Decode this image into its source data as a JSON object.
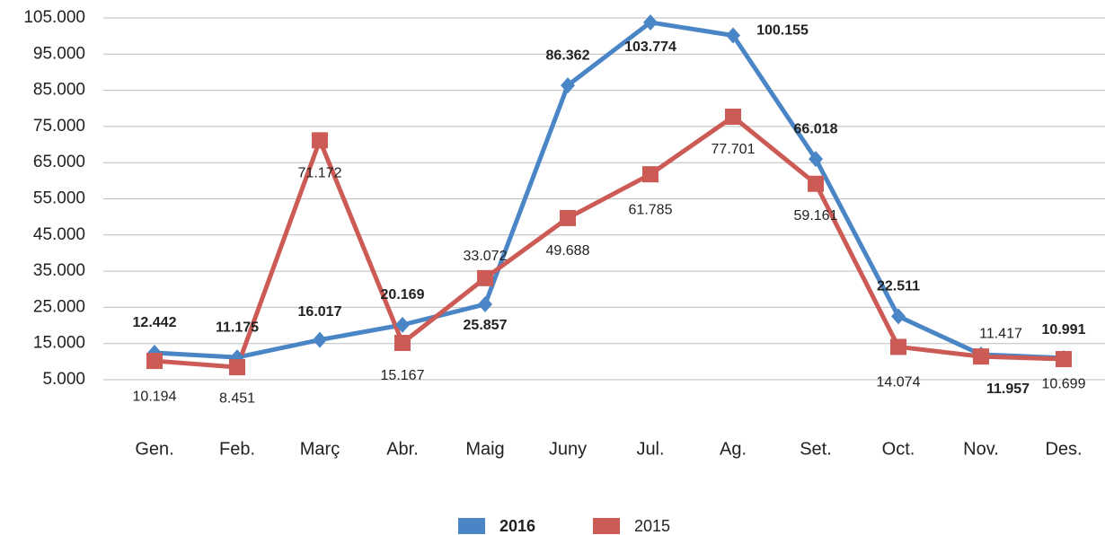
{
  "chart_data": {
    "type": "line",
    "categories": [
      "Gen.",
      "Feb.",
      "Març",
      "Abr.",
      "Maig",
      "Juny",
      "Jul.",
      "Ag.",
      "Set.",
      "Oct.",
      "Nov.",
      "Des."
    ],
    "series": [
      {
        "name": "2016",
        "color": "#4a86c5",
        "marker": "diamond",
        "values": [
          12442,
          11175,
          16017,
          20169,
          25857,
          86362,
          103774,
          100155,
          66018,
          22511,
          11957,
          10991
        ],
        "value_labels": [
          "12.442",
          "11.175",
          "16.017",
          "20.169",
          "25.857",
          "86.362",
          "103.774",
          "100.155",
          "66.018",
          "22.511",
          "11.957",
          "10.991"
        ]
      },
      {
        "name": "2015",
        "color": "#cc5a55",
        "marker": "square",
        "values": [
          10194,
          8451,
          71172,
          15167,
          33072,
          49688,
          61785,
          77701,
          59161,
          14074,
          11417,
          10699
        ],
        "value_labels": [
          "10.194",
          "8.451",
          "71.172",
          "15.167",
          "33.072",
          "49.688",
          "61.785",
          "77.701",
          "59.161",
          "14.074",
          "11.417",
          "10.699"
        ]
      }
    ],
    "ylim": [
      5000,
      105000
    ],
    "yticks": [
      {
        "value": 5000,
        "label": "5.000"
      },
      {
        "value": 15000,
        "label": "15.000"
      },
      {
        "value": 25000,
        "label": "25.000"
      },
      {
        "value": 35000,
        "label": "35.000"
      },
      {
        "value": 45000,
        "label": "45.000"
      },
      {
        "value": 55000,
        "label": "55.000"
      },
      {
        "value": 65000,
        "label": "65.000"
      },
      {
        "value": 75000,
        "label": "75.000"
      },
      {
        "value": 85000,
        "label": "85.000"
      },
      {
        "value": 95000,
        "label": "95.000"
      },
      {
        "value": 105000,
        "label": "105.000"
      }
    ],
    "grid": true,
    "legend": "bottom"
  }
}
